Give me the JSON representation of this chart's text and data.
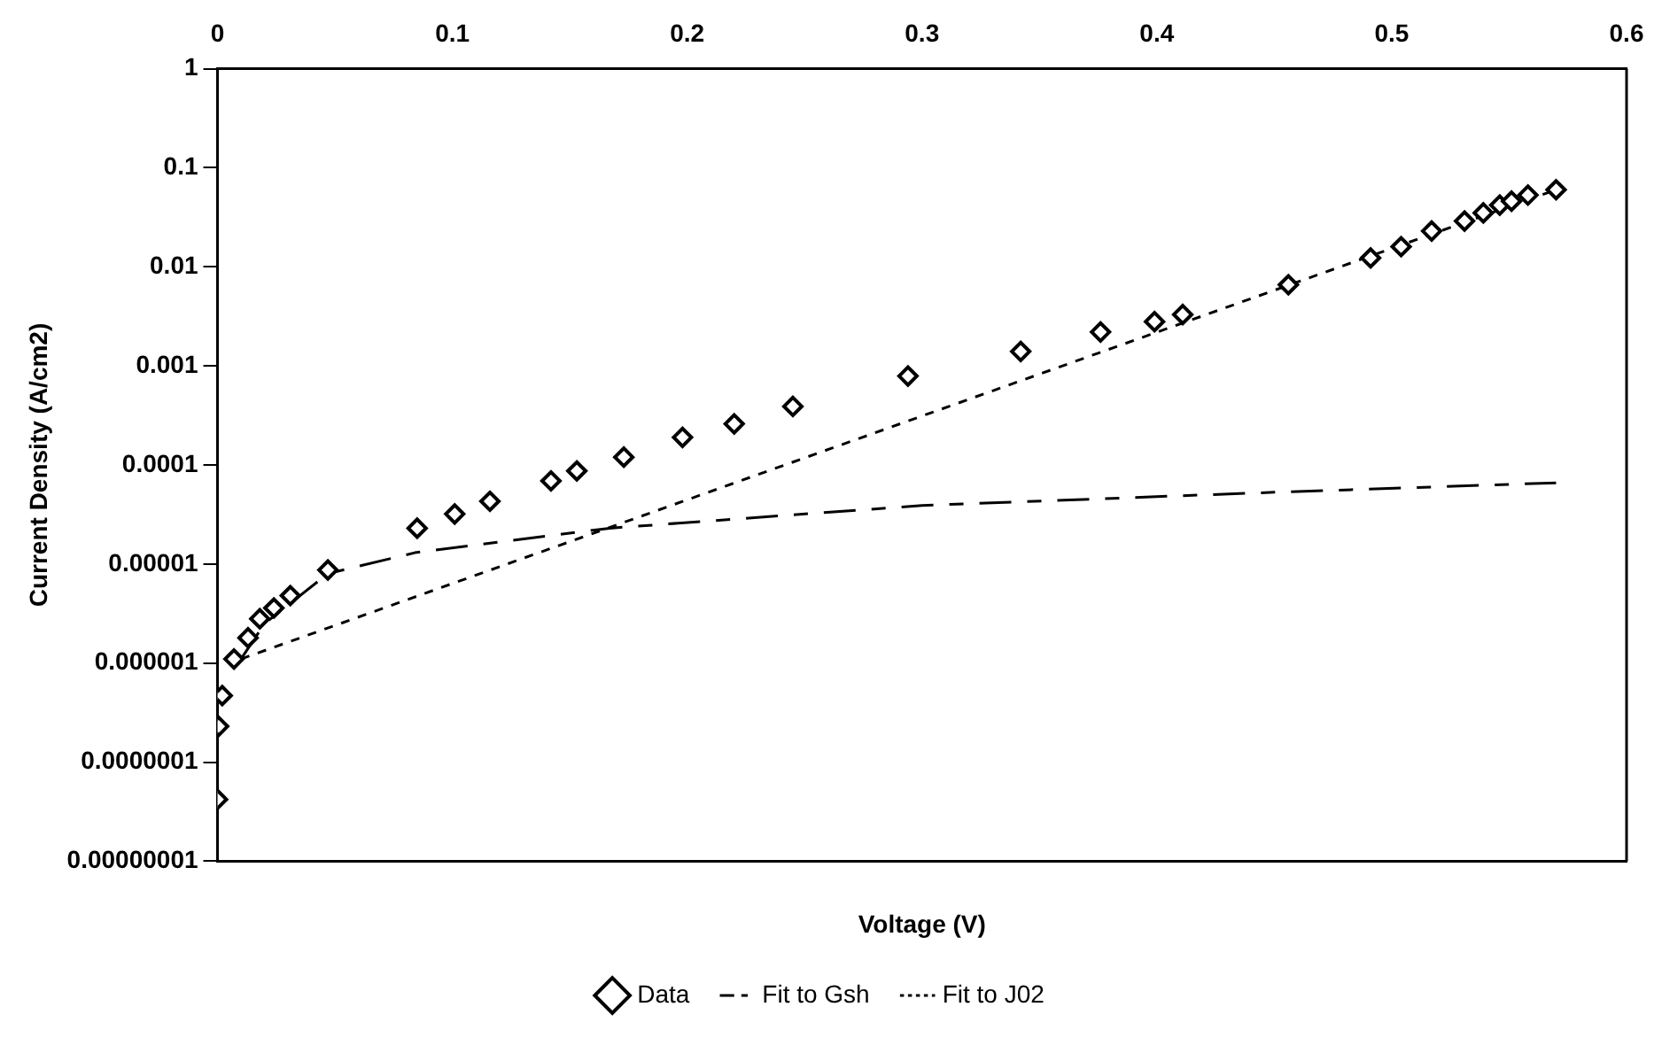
{
  "chart_data": {
    "type": "scatter",
    "xlabel": "Voltage (V)",
    "ylabel": "Current Density (A/cm2)",
    "xlim": [
      0,
      0.6
    ],
    "xticks": [
      0,
      0.1,
      0.2,
      0.3,
      0.4,
      0.5,
      0.6
    ],
    "ylim": [
      1e-08,
      1
    ],
    "yticks": [
      {
        "value": 1e-08,
        "label": "0.00000001"
      },
      {
        "value": 1e-07,
        "label": "0.0000001"
      },
      {
        "value": 1e-06,
        "label": "0.000001"
      },
      {
        "value": 1e-05,
        "label": "0.00001"
      },
      0.0001,
      0.001,
      0.01,
      0.1,
      1
    ],
    "log": "y",
    "grid": false,
    "legend": "bottom",
    "series": [
      {
        "name": "Data",
        "marker": "diamond",
        "color": "#000000",
        "x": [
          0,
          0.0005,
          0.002,
          0.007,
          0.013,
          0.018,
          0.024,
          0.031,
          0.047,
          0.085,
          0.101,
          0.116,
          0.142,
          0.153,
          0.173,
          0.198,
          0.22,
          0.245,
          0.294,
          0.342,
          0.376,
          0.399,
          0.411,
          0.456,
          0.491,
          0.504,
          0.517,
          0.531,
          0.539,
          0.546,
          0.551,
          0.558,
          0.57
        ],
        "values": [
          4.2e-08,
          2.3e-07,
          4.7e-07,
          1.1e-06,
          1.8e-06,
          2.8e-06,
          3.6e-06,
          4.8e-06,
          8.7e-06,
          2.3e-05,
          3.2e-05,
          4.3e-05,
          6.9e-05,
          8.7e-05,
          0.00012,
          0.00019,
          0.00026,
          0.00039,
          0.00079,
          0.0014,
          0.0022,
          0.0028,
          0.0033,
          0.0066,
          0.0123,
          0.016,
          0.023,
          0.029,
          0.035,
          0.042,
          0.046,
          0.053,
          0.06
        ]
      },
      {
        "name": "Fit to Gsh",
        "type": "line",
        "line_style": "dashed",
        "marker": "none",
        "color": "#000000",
        "x": [
          0.01,
          0.02,
          0.047,
          0.084,
          0.167,
          0.3,
          0.45,
          0.57
        ],
        "values": [
          1.1e-06,
          2.5e-06,
          8e-06,
          1.3e-05,
          2.3e-05,
          3.9e-05,
          5.3e-05,
          6.6e-05
        ]
      },
      {
        "name": "Fit to J02",
        "type": "line",
        "line_style": "dashed",
        "marker": "none",
        "color": "#000000",
        "x": [
          0.01,
          0.57
        ],
        "values": [
          1.1e-06,
          0.06
        ]
      }
    ]
  }
}
